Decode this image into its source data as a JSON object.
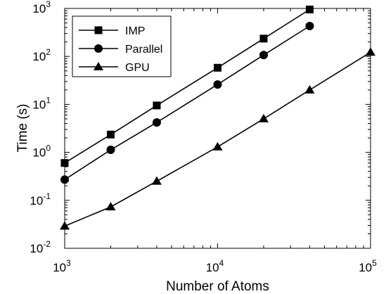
{
  "chart_data": {
    "type": "line",
    "title": "",
    "xlabel": "Number of Atoms",
    "ylabel": "Time (s)",
    "x_scale": "log",
    "y_scale": "log",
    "xlim": [
      1000,
      100000
    ],
    "ylim": [
      0.01,
      1000
    ],
    "x_ticks": [
      {
        "value": 1000,
        "base": "10",
        "exp": "3"
      },
      {
        "value": 10000,
        "base": "10",
        "exp": "4"
      },
      {
        "value": 100000,
        "base": "10",
        "exp": "5"
      }
    ],
    "y_ticks": [
      {
        "value": 0.01,
        "base": "10",
        "exp": "-2"
      },
      {
        "value": 0.1,
        "base": "10",
        "exp": "-1"
      },
      {
        "value": 1,
        "base": "10",
        "exp": "0"
      },
      {
        "value": 10,
        "base": "10",
        "exp": "1"
      },
      {
        "value": 100,
        "base": "10",
        "exp": "2"
      },
      {
        "value": 1000,
        "base": "10",
        "exp": "3"
      }
    ],
    "grid": false,
    "legend_position": "top-left",
    "series": [
      {
        "name": "IMP",
        "marker": "square",
        "color": "#000000",
        "points": [
          [
            1000,
            0.6
          ],
          [
            2000,
            2.35
          ],
          [
            4000,
            9.5
          ],
          [
            10000,
            58
          ],
          [
            20000,
            235
          ],
          [
            40000,
            950
          ]
        ]
      },
      {
        "name": "Parallel",
        "marker": "circle",
        "color": "#000000",
        "points": [
          [
            1000,
            0.27
          ],
          [
            2000,
            1.13
          ],
          [
            4000,
            4.2
          ],
          [
            10000,
            26
          ],
          [
            20000,
            107
          ],
          [
            40000,
            430
          ]
        ]
      },
      {
        "name": "GPU",
        "marker": "triangle",
        "color": "#000000",
        "points": [
          [
            1000,
            0.029
          ],
          [
            2000,
            0.073
          ],
          [
            4000,
            0.25
          ],
          [
            10000,
            1.3
          ],
          [
            20000,
            5.0
          ],
          [
            40000,
            20
          ],
          [
            100000,
            122
          ]
        ]
      }
    ]
  }
}
